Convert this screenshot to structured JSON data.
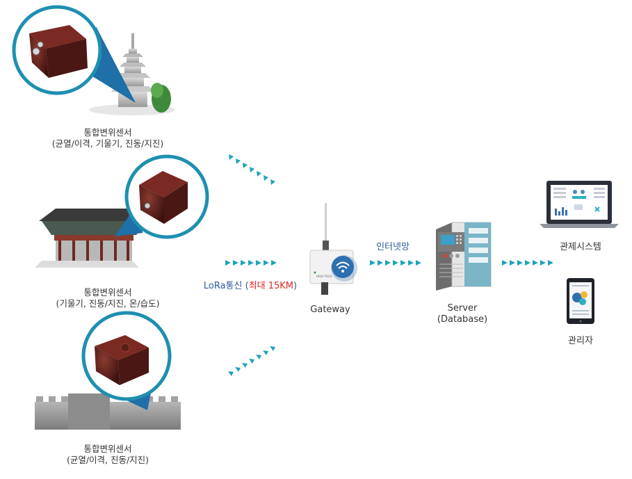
{
  "sensors": [
    {
      "title": "통합변위센서",
      "detail": "(균열/이격, 기울기, 진동/지진)"
    },
    {
      "title": "통합변위센서",
      "detail": "(기울기, 진동/지진, 온/습도)"
    },
    {
      "title": "통합변위센서",
      "detail": "(균열/이격, 진동/지진)"
    }
  ],
  "lora": {
    "prefix": "LoRa통신 (",
    "highlight": "최대 15KM",
    "suffix": ")"
  },
  "gateway": {
    "label": "Gateway",
    "brand": "HIGH TECH"
  },
  "internet": {
    "label": "인터넷망"
  },
  "server": {
    "line1": "Server",
    "line2": "(Database)"
  },
  "monitoring": {
    "label": "관제시스템"
  },
  "admin": {
    "label": "관리자"
  },
  "colors": {
    "arrow": "#1fa3b8",
    "ring": "#1f8fb0",
    "pointer": "#1f6fa8",
    "sensor_body": "#5a1f1a",
    "lora_text": "#2e5a9c",
    "highlight": "#e0261f",
    "internet_text": "#2e5a9c"
  }
}
